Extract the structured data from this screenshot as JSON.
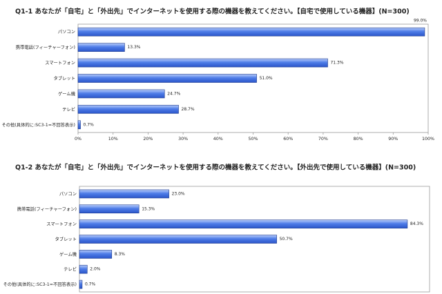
{
  "chart_data": [
    {
      "type": "bar",
      "orientation": "horizontal",
      "title": "Q1-1 あなたが「自宅」と「外出先」でインターネットを使用する際の機器を教えてください。【自宅で使用している機器】(N=300)",
      "categories": [
        "パソコン",
        "携帯電話(フィーチャーフォン)",
        "スマートフォン",
        "タブレット",
        "ゲーム機",
        "テレビ",
        "その他(具体的に:SC3-1=不回答表示)"
      ],
      "values": [
        99.0,
        13.3,
        71.3,
        51.0,
        24.7,
        28.7,
        0.7
      ],
      "value_labels": [
        "99.0%",
        "13.3%",
        "71.3%",
        "51.0%",
        "24.7%",
        "28.7%",
        "0.7%"
      ],
      "color": "#4f7de8",
      "xlim": [
        0,
        100
      ],
      "xticks": [
        {
          "value": 0,
          "label": "0%"
        },
        {
          "value": 10,
          "label": "10%"
        },
        {
          "value": 20,
          "label": "20%"
        },
        {
          "value": 30,
          "label": "30%"
        },
        {
          "value": 40,
          "label": "40%"
        },
        {
          "value": 50,
          "label": "50%"
        },
        {
          "value": 60,
          "label": "60%"
        },
        {
          "value": 70,
          "label": "70%"
        },
        {
          "value": 80,
          "label": "80%"
        },
        {
          "value": 90,
          "label": "90%"
        },
        {
          "value": 100,
          "label": "100%"
        }
      ]
    },
    {
      "type": "bar",
      "orientation": "horizontal",
      "title": "Q1-2 あなたが「自宅」と「外出先」でインターネットを使用する際の機器を教えてください。【外出先で使用している機器】(N=300)",
      "categories": [
        "パソコン",
        "携帯電話(フィーチャーフォン)",
        "スマートフォン",
        "タブレット",
        "ゲーム機",
        "テレビ",
        "その他(具体的に:SC3-1=不回答表示)"
      ],
      "values": [
        23.0,
        15.3,
        84.3,
        50.7,
        8.3,
        2.0,
        0.7
      ],
      "value_labels": [
        "23.0%",
        "15.3%",
        "84.3%",
        "50.7%",
        "8.3%",
        "2.0%",
        "0.7%"
      ],
      "color": "#4f7de8",
      "xlim": [
        0,
        90
      ]
    }
  ]
}
